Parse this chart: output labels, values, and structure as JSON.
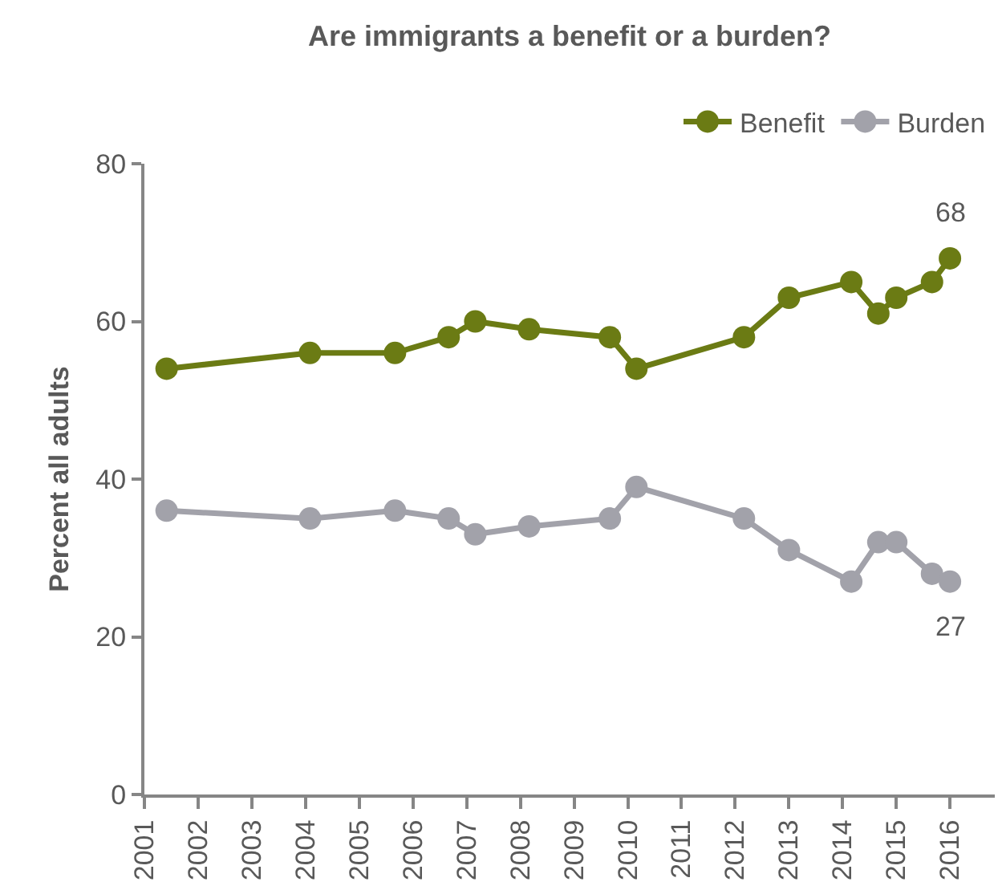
{
  "chart_data": {
    "type": "line",
    "title": "Are immigrants a benefit or a burden?",
    "ylabel": "Percent all adults",
    "x": [
      "2001-06",
      "2004-02",
      "2005-09",
      "2006-09",
      "2007-03",
      "2008-03",
      "2009-09",
      "2010-03",
      "2012-03",
      "2013-01",
      "2014-03",
      "2014-09",
      "2015-01",
      "2015-09",
      "2016-01"
    ],
    "series": [
      {
        "name": "Benefit",
        "color": "#6b7b14",
        "values": [
          54,
          56,
          56,
          58,
          60,
          59,
          58,
          54,
          58,
          63,
          65,
          61,
          63,
          65,
          68
        ],
        "value_labels": [
          null,
          null,
          null,
          null,
          null,
          null,
          null,
          null,
          null,
          null,
          null,
          null,
          null,
          null,
          "68"
        ]
      },
      {
        "name": "Burden",
        "color": "#a2a2aa",
        "values": [
          36,
          35,
          36,
          35,
          33,
          34,
          35,
          39,
          35,
          31,
          27,
          32,
          32,
          28,
          27
        ],
        "value_labels": [
          null,
          null,
          null,
          null,
          null,
          null,
          null,
          null,
          null,
          null,
          null,
          null,
          null,
          null,
          "27"
        ]
      }
    ],
    "xlim": [
      "2001-01-01",
      "2016-11-01"
    ],
    "xticks": [
      "2001",
      "2002",
      "2003",
      "2004",
      "2005",
      "2006",
      "2007",
      "2008",
      "2009",
      "2010",
      "2011",
      "2012",
      "2013",
      "2014",
      "2015",
      "2016"
    ],
    "ylim": [
      0,
      80
    ],
    "yticks": [
      0,
      20,
      40,
      60,
      80
    ],
    "grid": false,
    "legend": "top right",
    "marker": "circle",
    "line_style": "solid"
  }
}
